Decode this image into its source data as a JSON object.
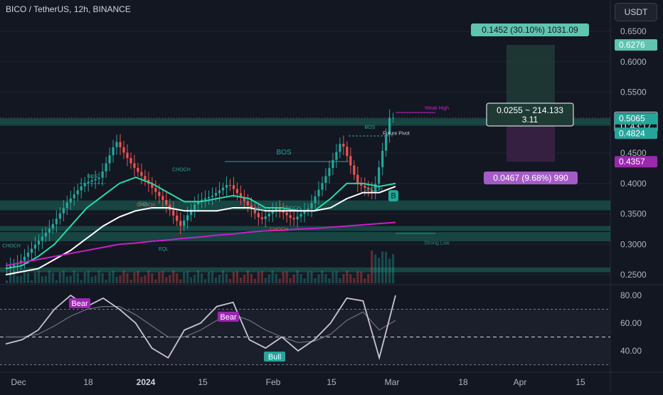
{
  "header": {
    "symbol": "BICO / TetherUS, 12h, BINANCE",
    "currency_button": "USDT"
  },
  "colors": {
    "background": "#131722",
    "bull": "#26a69a",
    "bear": "#ef5350",
    "ema_fast": "#2bd9a6",
    "ema_slow": "#ffffff",
    "ema_long": "#c71fcb",
    "target_box": "#5fc4b0",
    "stop_box": "#a45bc7",
    "rsi": "#c9c3d6"
  },
  "price_axis": {
    "ticks": [
      "0.6500",
      "0.6000",
      "0.5500",
      "0.5000",
      "0.4500",
      "0.4000",
      "0.3500",
      "0.3000",
      "0.2500"
    ],
    "tick_values": [
      0.65,
      0.6,
      0.55,
      0.5,
      0.45,
      0.4,
      0.35,
      0.3,
      0.25
    ],
    "badges": [
      {
        "label": "0.6276",
        "value": 0.6276,
        "color": "#5fc4b0"
      },
      {
        "label": "0.5079",
        "value": 0.5079,
        "color": "#ffffff"
      },
      {
        "label": "11:43:17",
        "value": 0.494,
        "color": "#ffffff"
      },
      {
        "label": "0.5065",
        "value": 0.5065,
        "color": "#26a69a"
      },
      {
        "label": "0.4824",
        "value": 0.4824,
        "color": "#26a69a"
      },
      {
        "label": "0.4357",
        "value": 0.4357,
        "color": "#9c27b0"
      }
    ]
  },
  "rsi_axis": {
    "ticks": [
      "80.00",
      "60.00",
      "40.00"
    ],
    "tick_values": [
      80,
      60,
      40
    ]
  },
  "time_axis": {
    "labels": [
      "Dec",
      "18",
      "2024",
      "15",
      "Feb",
      "15",
      "Mar",
      "18",
      "Apr",
      "15"
    ]
  },
  "annotations": {
    "target_label": "0.1452 (30.10%) 1031.09",
    "entry_label_line1": "0.0255 ~ 214.133",
    "entry_label_line2": "3.11",
    "stop_label": "0.0467 (9.68%) 990",
    "weak_high": "Weak High",
    "strong_low": "Strong Low",
    "future_pivot": "Future Pivot",
    "bos_1": "BOS",
    "bos_2": "BOS",
    "bos_3": "BOS",
    "bos_4": "BOS",
    "choch_1": "CHOCH",
    "choch_2": "CHOCH",
    "choch_3": "CHOCH",
    "choch_4": "CHOCH",
    "choch_5": "CHOCH",
    "choch_6": "CHOCH",
    "eql_1": "EQL",
    "eql_2": "EQL",
    "b_marker": "B",
    "rsi_bear_1": "Bear",
    "rsi_bear_2": "Bear",
    "rsi_bull": "Bull"
  },
  "chart_data": {
    "type": "line",
    "x": [
      "Nov 27",
      "Dec 1",
      "Dec 5",
      "Dec 9",
      "Dec 13",
      "Dec 17",
      "Dec 21",
      "Dec 25",
      "Dec 29",
      "Jan 2",
      "Jan 6",
      "Jan 10",
      "Jan 14",
      "Jan 18",
      "Jan 22",
      "Jan 26",
      "Jan 30",
      "Feb 3",
      "Feb 7",
      "Feb 11",
      "Feb 15",
      "Feb 19",
      "Feb 23",
      "Feb 27",
      "Mar 1"
    ],
    "ylim": [
      0.24,
      0.67
    ],
    "series": [
      {
        "values": [
          0.26,
          0.27,
          0.3,
          0.33,
          0.37,
          0.4,
          0.41,
          0.47,
          0.43,
          0.4,
          0.37,
          0.33,
          0.37,
          0.38,
          0.4,
          0.37,
          0.34,
          0.36,
          0.34,
          0.36,
          0.41,
          0.47,
          0.4,
          0.385,
          0.5079
        ]
      },
      {
        "values": [
          0.26,
          0.265,
          0.28,
          0.3,
          0.33,
          0.36,
          0.38,
          0.4,
          0.41,
          0.4,
          0.385,
          0.37,
          0.37,
          0.375,
          0.38,
          0.375,
          0.36,
          0.36,
          0.355,
          0.355,
          0.375,
          0.4,
          0.4,
          0.395,
          0.4
        ]
      },
      {
        "values": [
          0.25,
          0.255,
          0.26,
          0.275,
          0.29,
          0.31,
          0.33,
          0.345,
          0.355,
          0.36,
          0.36,
          0.355,
          0.355,
          0.355,
          0.36,
          0.36,
          0.355,
          0.355,
          0.355,
          0.355,
          0.36,
          0.375,
          0.385,
          0.385,
          0.395
        ]
      },
      {
        "values": [
          0.265,
          0.27,
          0.275,
          0.28,
          0.285,
          0.29,
          0.295,
          0.3,
          0.302,
          0.305,
          0.307,
          0.31,
          0.312,
          0.315,
          0.317,
          0.32,
          0.322,
          0.323,
          0.325,
          0.326,
          0.328,
          0.33,
          0.332,
          0.334,
          0.336
        ]
      }
    ],
    "rsi": {
      "ylim": [
        25,
        85
      ],
      "values": [
        45,
        48,
        55,
        70,
        80,
        72,
        78,
        70,
        60,
        42,
        35,
        55,
        60,
        72,
        75,
        48,
        42,
        50,
        40,
        48,
        60,
        78,
        76,
        35,
        80
      ],
      "signal": [
        50,
        50,
        52,
        58,
        65,
        70,
        72,
        72,
        66,
        58,
        50,
        50,
        55,
        62,
        66,
        62,
        55,
        50,
        46,
        47,
        52,
        62,
        68,
        55,
        62
      ],
      "upper": 70,
      "middle": 50,
      "lower": 30
    }
  }
}
